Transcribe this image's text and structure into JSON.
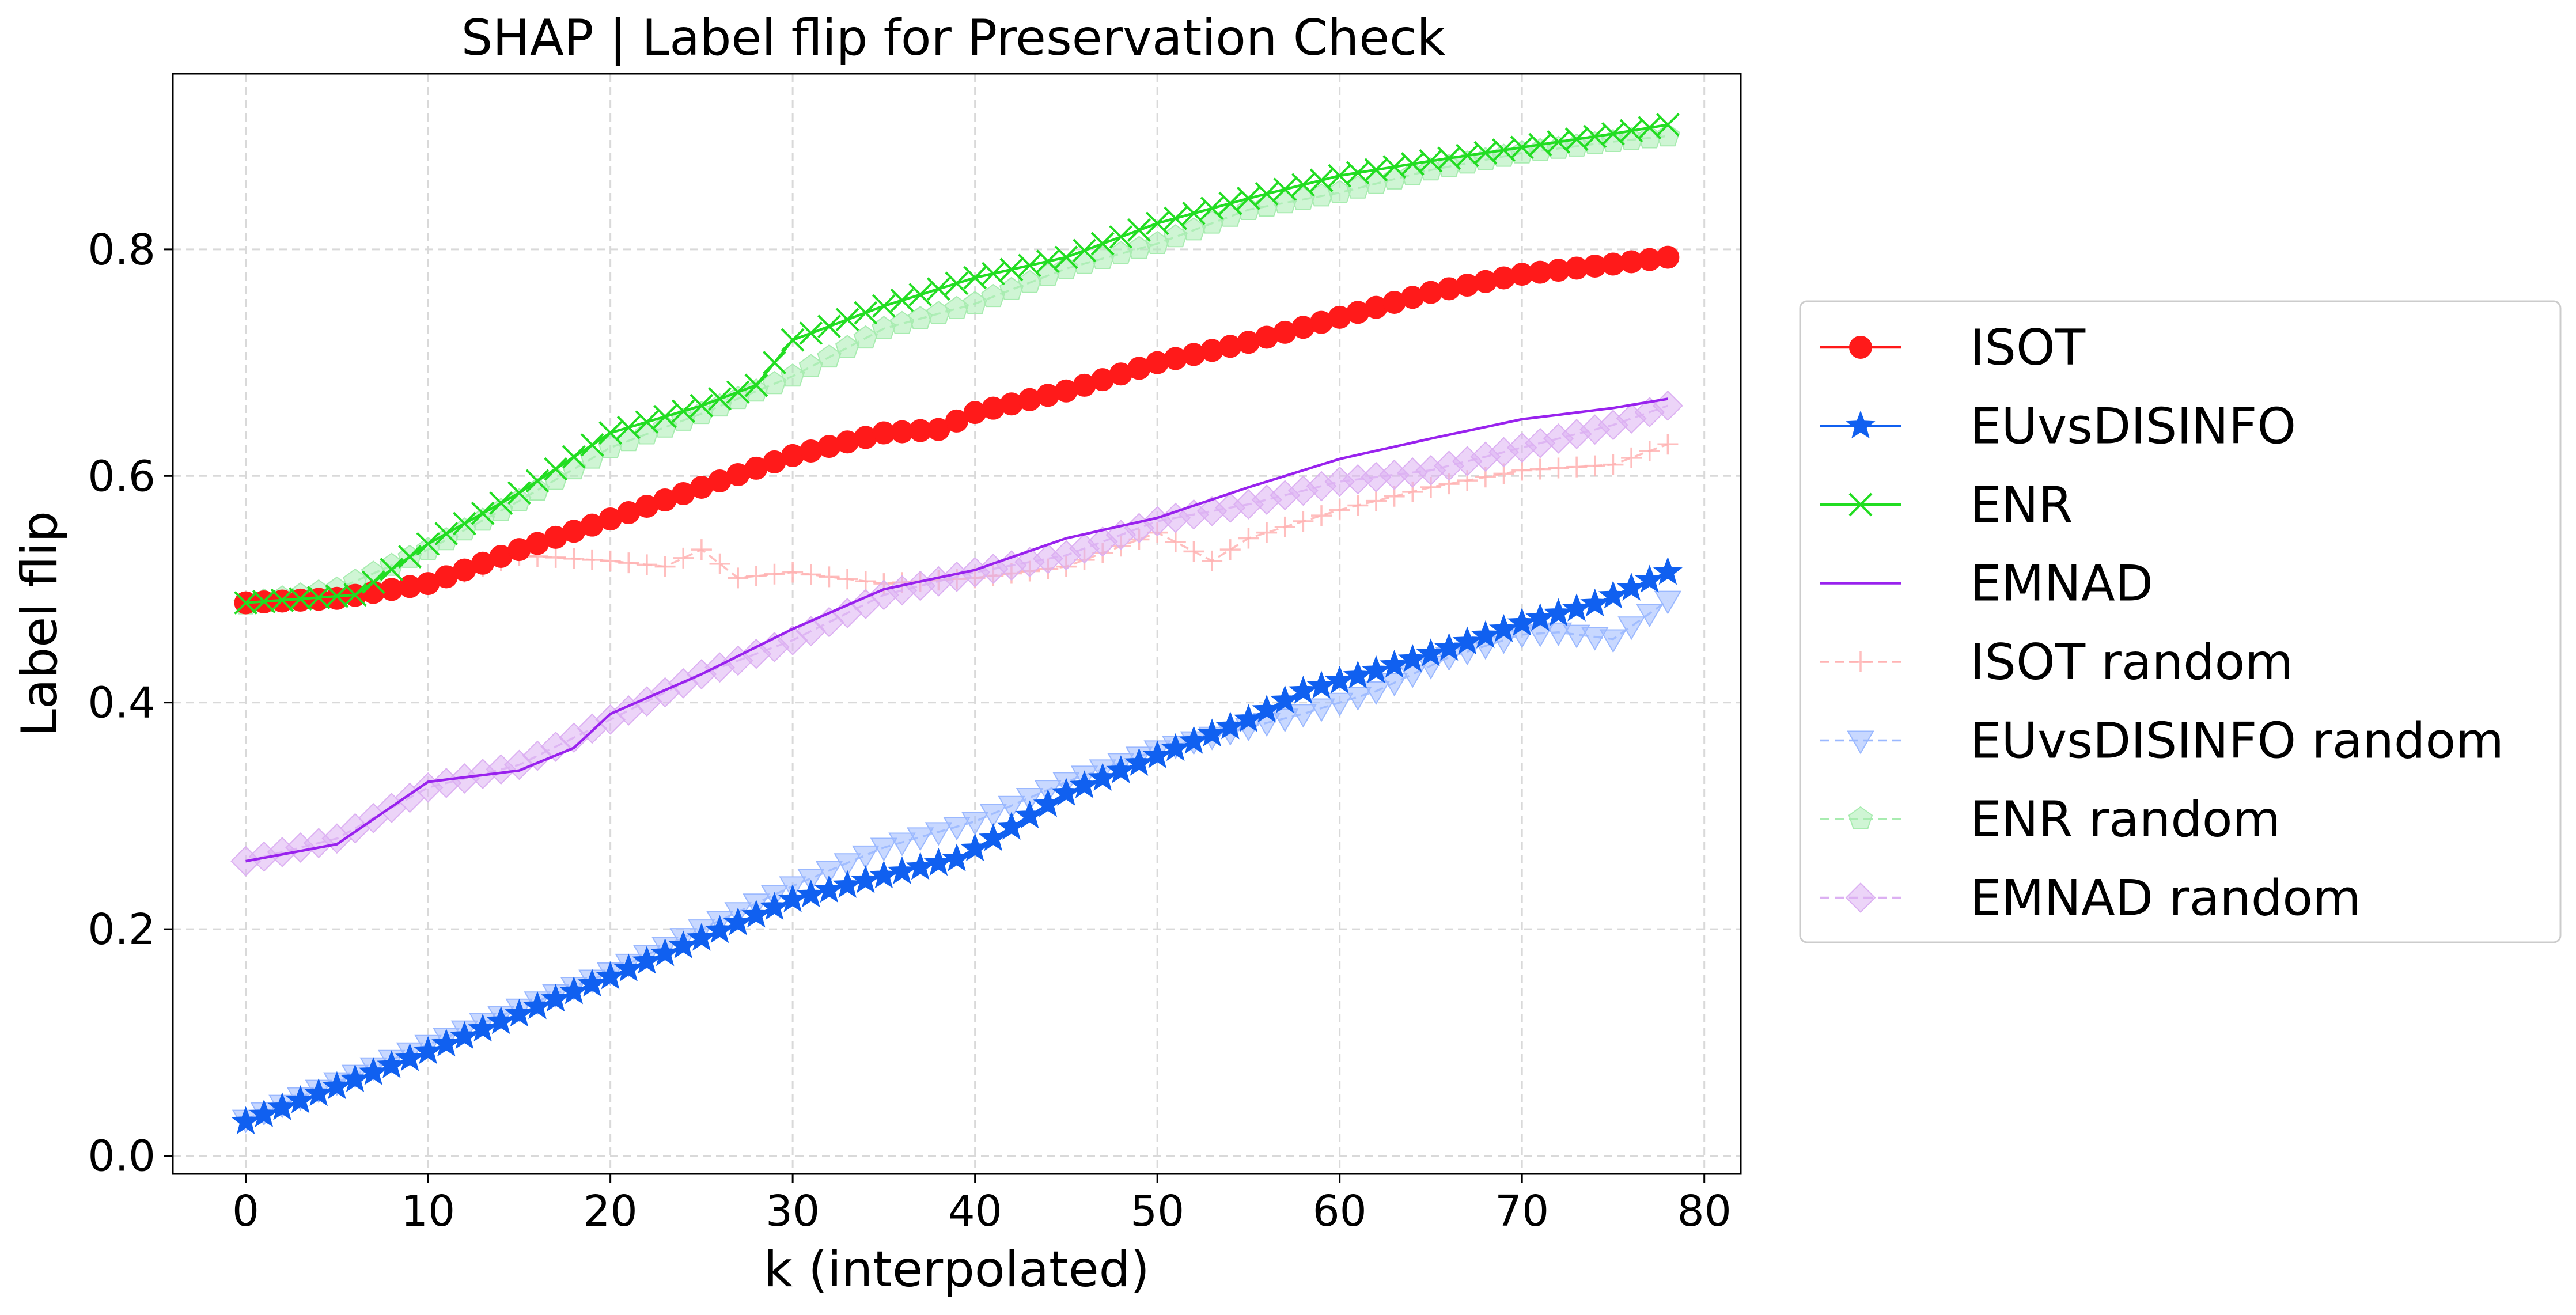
{
  "chart_data": {
    "type": "line",
    "title": "SHAP | Label flip for Preservation Check",
    "xlabel": "k (interpolated)",
    "ylabel": "Label flip",
    "xlim": [
      -4,
      82
    ],
    "ylim": [
      -0.016,
      0.955
    ],
    "xticks": [
      "0",
      "10",
      "20",
      "30",
      "40",
      "50",
      "60",
      "70",
      "80"
    ],
    "yticks": [
      "0.0",
      "0.2",
      "0.4",
      "0.6",
      "0.8"
    ],
    "grid": true,
    "legend_position": "outside-right",
    "series": [
      {
        "name": "ISOT",
        "color": "#ff1a1a",
        "marker": "circle",
        "style": "solid",
        "keypoints": [
          [
            0,
            0.488
          ],
          [
            5,
            0.492
          ],
          [
            10,
            0.505
          ],
          [
            15,
            0.535
          ],
          [
            20,
            0.562
          ],
          [
            25,
            0.59
          ],
          [
            30,
            0.618
          ],
          [
            35,
            0.638
          ],
          [
            38,
            0.641
          ],
          [
            40,
            0.656
          ],
          [
            45,
            0.675
          ],
          [
            50,
            0.7
          ],
          [
            55,
            0.718
          ],
          [
            60,
            0.74
          ],
          [
            65,
            0.762
          ],
          [
            70,
            0.778
          ],
          [
            75,
            0.787
          ],
          [
            78,
            0.793
          ]
        ]
      },
      {
        "name": "EUvsDISINFO",
        "color": "#1060f0",
        "marker": "star",
        "style": "solid",
        "keypoints": [
          [
            0,
            0.03
          ],
          [
            10,
            0.092
          ],
          [
            20,
            0.158
          ],
          [
            30,
            0.226
          ],
          [
            35,
            0.247
          ],
          [
            39,
            0.262
          ],
          [
            41,
            0.28
          ],
          [
            45,
            0.32
          ],
          [
            50,
            0.353
          ],
          [
            55,
            0.385
          ],
          [
            58,
            0.41
          ],
          [
            62,
            0.428
          ],
          [
            66,
            0.448
          ],
          [
            70,
            0.47
          ],
          [
            74,
            0.487
          ],
          [
            78,
            0.515
          ]
        ]
      },
      {
        "name": "ENR",
        "color": "#22dd22",
        "marker": "x",
        "style": "solid",
        "keypoints": [
          [
            0,
            0.488
          ],
          [
            6,
            0.495
          ],
          [
            10,
            0.54
          ],
          [
            15,
            0.585
          ],
          [
            20,
            0.638
          ],
          [
            25,
            0.662
          ],
          [
            28,
            0.68
          ],
          [
            30,
            0.72
          ],
          [
            35,
            0.75
          ],
          [
            40,
            0.775
          ],
          [
            45,
            0.793
          ],
          [
            50,
            0.823
          ],
          [
            55,
            0.845
          ],
          [
            60,
            0.865
          ],
          [
            65,
            0.878
          ],
          [
            70,
            0.89
          ],
          [
            75,
            0.902
          ],
          [
            78,
            0.91
          ]
        ]
      },
      {
        "name": "EMNAD",
        "color": "#9922ee",
        "marker": "none",
        "style": "solid",
        "keypoints": [
          [
            0,
            0.26
          ],
          [
            5,
            0.275
          ],
          [
            10,
            0.33
          ],
          [
            15,
            0.34
          ],
          [
            18,
            0.36
          ],
          [
            20,
            0.39
          ],
          [
            25,
            0.425
          ],
          [
            30,
            0.465
          ],
          [
            35,
            0.5
          ],
          [
            40,
            0.517
          ],
          [
            45,
            0.545
          ],
          [
            50,
            0.563
          ],
          [
            55,
            0.59
          ],
          [
            60,
            0.615
          ],
          [
            65,
            0.633
          ],
          [
            70,
            0.65
          ],
          [
            75,
            0.66
          ],
          [
            78,
            0.668
          ]
        ]
      },
      {
        "name": "ISOT random",
        "color": "#ffb3b3",
        "marker": "plus",
        "style": "dashed",
        "keypoints": [
          [
            0,
            0.488
          ],
          [
            5,
            0.492
          ],
          [
            10,
            0.505
          ],
          [
            15,
            0.53
          ],
          [
            20,
            0.525
          ],
          [
            23,
            0.52
          ],
          [
            25,
            0.535
          ],
          [
            27,
            0.51
          ],
          [
            30,
            0.515
          ],
          [
            35,
            0.505
          ],
          [
            40,
            0.51
          ],
          [
            45,
            0.52
          ],
          [
            50,
            0.55
          ],
          [
            53,
            0.525
          ],
          [
            55,
            0.545
          ],
          [
            60,
            0.57
          ],
          [
            65,
            0.59
          ],
          [
            70,
            0.605
          ],
          [
            75,
            0.61
          ],
          [
            78,
            0.628
          ]
        ]
      },
      {
        "name": "EUvsDISINFO random",
        "color": "#9ab8ff",
        "marker": "triangle-down",
        "style": "dashed",
        "keypoints": [
          [
            0,
            0.032
          ],
          [
            10,
            0.098
          ],
          [
            20,
            0.162
          ],
          [
            30,
            0.238
          ],
          [
            35,
            0.272
          ],
          [
            40,
            0.295
          ],
          [
            45,
            0.33
          ],
          [
            50,
            0.358
          ],
          [
            55,
            0.378
          ],
          [
            58,
            0.39
          ],
          [
            62,
            0.41
          ],
          [
            66,
            0.44
          ],
          [
            70,
            0.46
          ],
          [
            72,
            0.462
          ],
          [
            75,
            0.456
          ],
          [
            78,
            0.49
          ]
        ]
      },
      {
        "name": "ENR random",
        "color": "#a8ecb0",
        "marker": "pentagon",
        "style": "dashed",
        "keypoints": [
          [
            0,
            0.487
          ],
          [
            5,
            0.5
          ],
          [
            10,
            0.535
          ],
          [
            15,
            0.578
          ],
          [
            20,
            0.625
          ],
          [
            25,
            0.655
          ],
          [
            30,
            0.688
          ],
          [
            35,
            0.73
          ],
          [
            40,
            0.752
          ],
          [
            45,
            0.783
          ],
          [
            50,
            0.805
          ],
          [
            55,
            0.835
          ],
          [
            60,
            0.85
          ],
          [
            65,
            0.87
          ],
          [
            70,
            0.885
          ],
          [
            75,
            0.895
          ],
          [
            78,
            0.9
          ]
        ]
      },
      {
        "name": "EMNAD random",
        "color": "#dcb0f2",
        "marker": "diamond",
        "style": "dashed",
        "keypoints": [
          [
            0,
            0.26
          ],
          [
            5,
            0.28
          ],
          [
            10,
            0.325
          ],
          [
            15,
            0.345
          ],
          [
            20,
            0.385
          ],
          [
            25,
            0.425
          ],
          [
            30,
            0.455
          ],
          [
            35,
            0.495
          ],
          [
            40,
            0.515
          ],
          [
            45,
            0.53
          ],
          [
            50,
            0.56
          ],
          [
            55,
            0.575
          ],
          [
            60,
            0.595
          ],
          [
            65,
            0.605
          ],
          [
            70,
            0.625
          ],
          [
            75,
            0.645
          ],
          [
            78,
            0.662
          ]
        ]
      }
    ]
  }
}
